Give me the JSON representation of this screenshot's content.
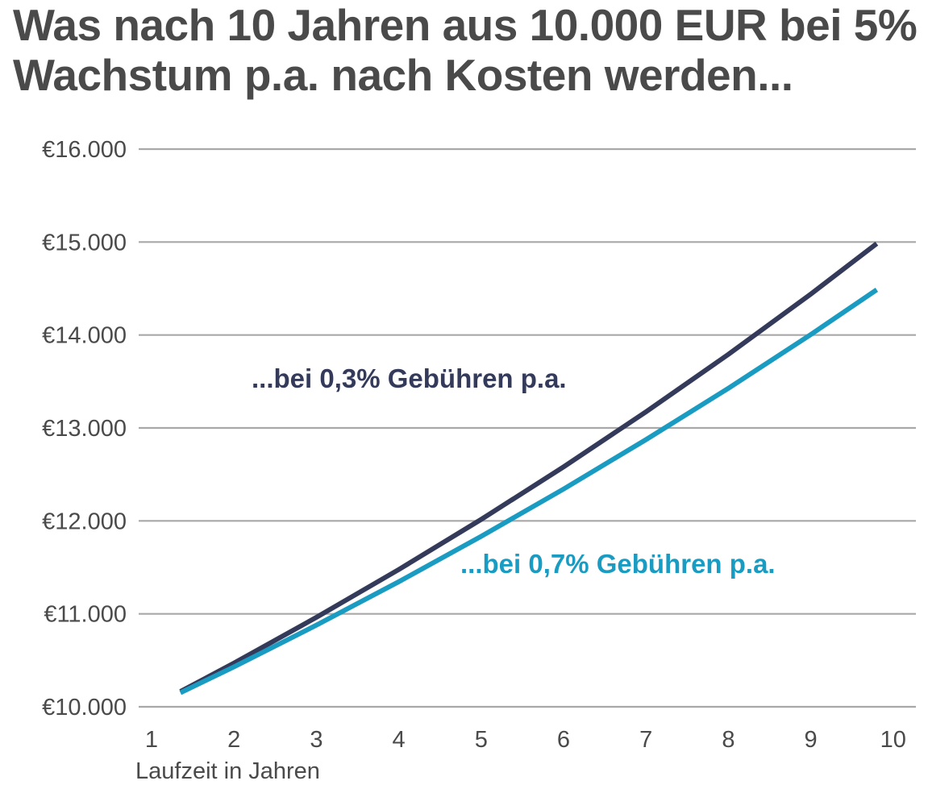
{
  "chart_data": {
    "type": "line",
    "title": "Was nach 10 Jahren aus 10.000 EUR bei 5% Wachstum p.a. nach Kosten werden...",
    "xlabel": "Laufzeit in Jahren",
    "ylabel": "",
    "x": [
      1,
      2,
      3,
      4,
      5,
      6,
      7,
      8,
      9,
      10
    ],
    "x_tick_labels": [
      "1",
      "2",
      "3",
      "4",
      "5",
      "6",
      "7",
      "8",
      "9",
      "10"
    ],
    "ylim": [
      10000,
      16000
    ],
    "y_ticks": [
      10000,
      11000,
      12000,
      13000,
      14000,
      15000,
      16000
    ],
    "y_tick_labels": [
      "€10.000",
      "€11.000",
      "€12.000",
      "€13.000",
      "€14.000",
      "€15.000",
      "€16.000"
    ],
    "grid": "horizontal",
    "legend": "none",
    "series": [
      {
        "name": "...bei 0,3% Gebühren p.a.",
        "color": "#333a5a",
        "values": [
          10000,
          10470,
          10962,
          11477,
          12016,
          12581,
          13173,
          13792,
          14440,
          15119
        ]
      },
      {
        "name": "...bei 0,7% Gebühren p.a.",
        "color": "#1a9cc2",
        "values": [
          10000,
          10430,
          10878,
          11346,
          11834,
          12343,
          12874,
          13427,
          14005,
          14607
        ]
      }
    ]
  }
}
